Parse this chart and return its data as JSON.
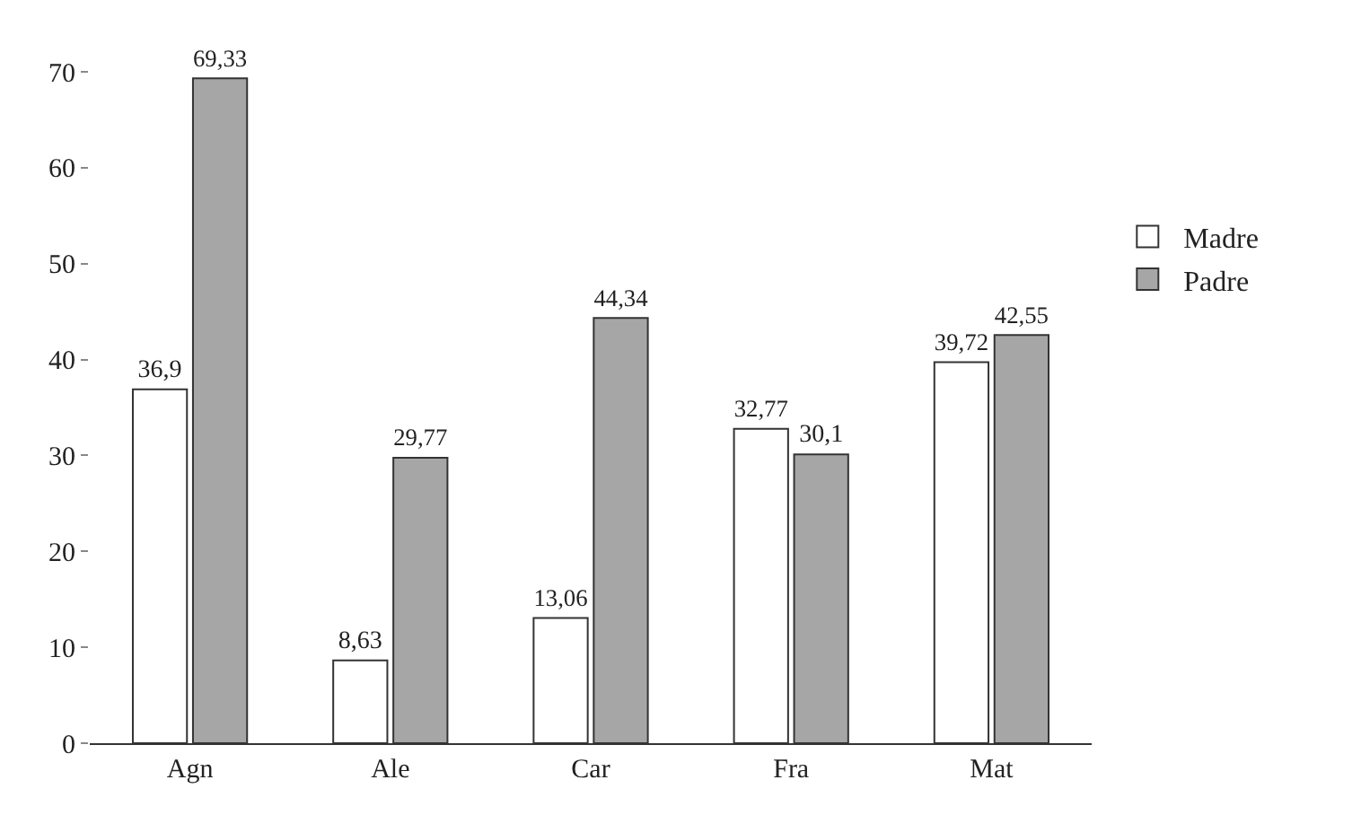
{
  "chart_data": {
    "type": "bar",
    "categories": [
      "Agn",
      "Ale",
      "Car",
      "Fra",
      "Mat"
    ],
    "series": [
      {
        "name": "Madre",
        "color": "#ffffff",
        "values": [
          36.9,
          8.63,
          13.06,
          32.77,
          39.72
        ],
        "value_labels": [
          "36,9",
          "8,63",
          "13,06",
          "32,77",
          "39,72"
        ]
      },
      {
        "name": "Padre",
        "color": "#a6a6a6",
        "values": [
          69.33,
          29.77,
          44.34,
          30.1,
          42.55
        ],
        "value_labels": [
          "69,33",
          "29,77",
          "44,34",
          "30,1",
          "42,55"
        ]
      }
    ],
    "ylim": [
      0,
      70
    ],
    "yticks": [
      0,
      10,
      20,
      30,
      40,
      50,
      60,
      70
    ],
    "legend": "right"
  }
}
